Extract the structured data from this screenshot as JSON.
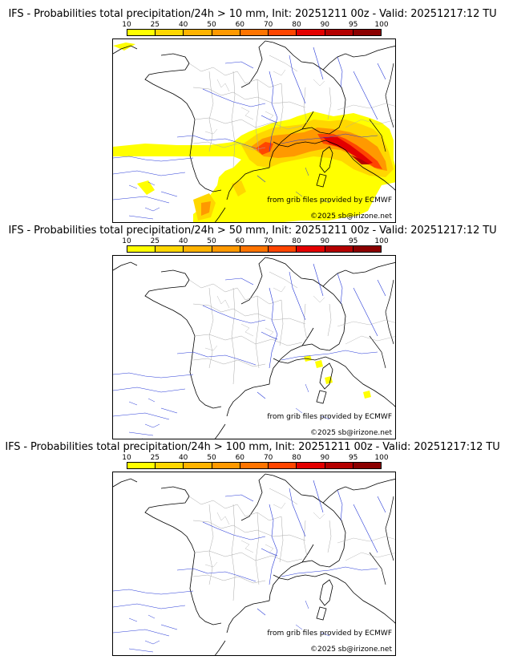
{
  "scale": {
    "ticks": [
      "10",
      "25",
      "40",
      "50",
      "60",
      "70",
      "80",
      "90",
      "95",
      "100"
    ],
    "colors": [
      "#ffff00",
      "#ffd700",
      "#ffb300",
      "#ff9900",
      "#ff7400",
      "#ff4500",
      "#e30000",
      "#b40000",
      "#8b0000",
      "#5a0000"
    ]
  },
  "panels": [
    {
      "title": "IFS - Probabilities total precipitation/24h > 10 mm, Init: 20251211 00z - Valid: 20251217:12 TU",
      "credit_source": "from grib files provided by ECMWF",
      "credit_copyright": "©2025 sb@irizone.net"
    },
    {
      "title": "IFS - Probabilities total precipitation/24h > 50 mm, Init: 20251211 00z - Valid: 20251217:12 TU",
      "credit_source": "from grib files provided by ECMWF",
      "credit_copyright": "©2025 sb@irizone.net"
    },
    {
      "title": "IFS - Probabilities total precipitation/24h > 100 mm, Init: 20251211 00z - Valid: 20251217:12 TU",
      "credit_source": "from grib files provided by ECMWF",
      "credit_copyright": "©2025 sb@irizone.net"
    }
  ]
}
